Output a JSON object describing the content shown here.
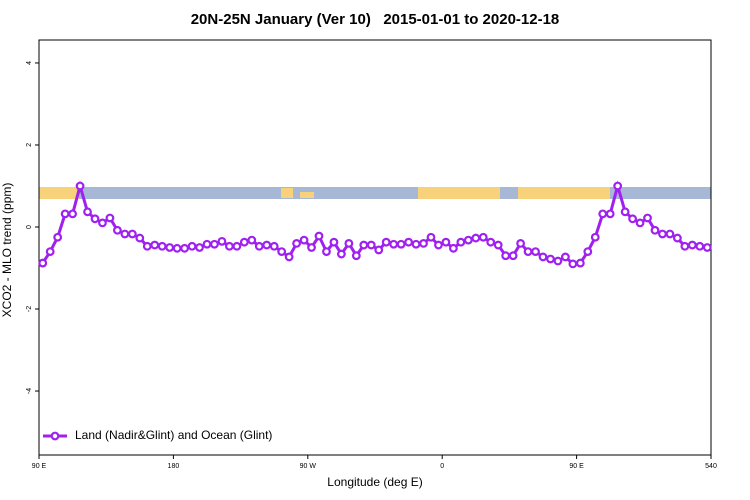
{
  "chart_data": {
    "type": "line",
    "title": "20N-25N January (Ver 10)   2015-01-01 to 2020-12-18",
    "x_label": "Longitude (deg E)",
    "y_label": "XCO2 - MLO trend (ppm)",
    "x": [
      92.5,
      97.5,
      102.5,
      107.5,
      112.5,
      117.5,
      122.5,
      127.5,
      132.5,
      137.5,
      142.5,
      147.5,
      152.5,
      157.5,
      162.5,
      167.5,
      172.5,
      177.5,
      182.5,
      187.5,
      192.5,
      197.5,
      202.5,
      207.5,
      212.5,
      217.5,
      222.5,
      227.5,
      232.5,
      237.5,
      242.5,
      247.5,
      252.5,
      257.5,
      262.5,
      267.5,
      272.5,
      277.5,
      282.5,
      287.5,
      292.5,
      297.5,
      302.5,
      307.5,
      312.5,
      317.5,
      322.5,
      327.5,
      332.5,
      337.5,
      342.5,
      347.5,
      352.5,
      357.5,
      362.5,
      367.5,
      372.5,
      377.5,
      382.5,
      387.5,
      392.5,
      397.5,
      402.5,
      407.5,
      412.5,
      417.5,
      422.5,
      427.5,
      432.5,
      437.5,
      442.5,
      447.5,
      452.5,
      457.5,
      462.5,
      467.5,
      472.5,
      477.5,
      482.5,
      487.5,
      492.5,
      497.5,
      502.5,
      507.5,
      512.5,
      517.5,
      522.5,
      527.5,
      532.5,
      537.5
    ],
    "series": [
      {
        "name": "Land (Nadir&Glint) and Ocean (Glint)",
        "color": "#a020f0",
        "values": [
          -0.88,
          -0.6,
          -0.25,
          0.32,
          0.32,
          1.0,
          0.37,
          0.2,
          0.1,
          0.22,
          -0.08,
          -0.17,
          -0.17,
          -0.27,
          -0.47,
          -0.44,
          -0.47,
          -0.5,
          -0.52,
          -0.52,
          -0.47,
          -0.5,
          -0.42,
          -0.42,
          -0.35,
          -0.47,
          -0.47,
          -0.37,
          -0.32,
          -0.47,
          -0.44,
          -0.47,
          -0.6,
          -0.73,
          -0.4,
          -0.32,
          -0.5,
          -0.22,
          -0.6,
          -0.37,
          -0.66,
          -0.4,
          -0.7,
          -0.44,
          -0.44,
          -0.56,
          -0.37,
          -0.42,
          -0.42,
          -0.37,
          -0.42,
          -0.4,
          -0.25,
          -0.44,
          -0.37,
          -0.52,
          -0.37,
          -0.32,
          -0.27,
          -0.25,
          -0.37,
          -0.44,
          -0.7,
          -0.7,
          -0.4,
          -0.6,
          -0.6,
          -0.73,
          -0.78,
          -0.83,
          -0.73,
          -0.9,
          -0.88,
          -0.6,
          -0.25,
          0.32,
          0.32,
          1.0,
          0.37,
          0.2,
          0.1,
          0.22,
          -0.08,
          -0.17,
          -0.17,
          -0.27,
          -0.47,
          -0.44,
          -0.47,
          -0.5
        ]
      }
    ],
    "xlim": [
      90,
      540
    ],
    "xticks": [
      {
        "value": 90,
        "label": "90 E"
      },
      180,
      {
        "value": 270,
        "label": "90 W"
      },
      {
        "value": 360,
        "label": "0"
      },
      {
        "value": 450,
        "label": "90 E"
      },
      540
    ],
    "ylim": [
      -5.56,
      4.56
    ],
    "yticks": [
      -4,
      -2,
      0,
      2,
      4
    ],
    "legend": "bottom-left"
  }
}
